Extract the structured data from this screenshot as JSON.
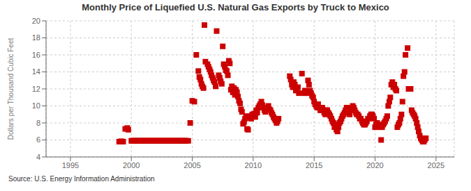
{
  "chart_data": {
    "type": "scatter",
    "title": "Monthly Price of Liquefied U.S. Natural Gas Exports by Truck to Mexico",
    "ylabel": "Dollars per Thousand Cubic Feet",
    "annotations": [
      "Source: U.S. Energy Information Administration"
    ],
    "color": "#cc0000",
    "marker": "square",
    "grid": true,
    "xlim": [
      1993.0,
      2026.5
    ],
    "xticks": [
      1995,
      2000,
      2005,
      2010,
      2015,
      2020,
      2025
    ],
    "ylim": [
      4,
      20
    ],
    "yticks": [
      4,
      6,
      8,
      10,
      12,
      14,
      16,
      18,
      20
    ],
    "x": [
      1999.0,
      1999.17,
      1999.33,
      1999.5,
      1999.67,
      1999.75,
      2000.0,
      2000.08,
      2000.17,
      2000.25,
      2000.33,
      2000.42,
      2000.5,
      2000.58,
      2000.67,
      2000.75,
      2000.83,
      2000.92,
      2001.0,
      2001.08,
      2001.17,
      2001.25,
      2001.33,
      2001.42,
      2001.5,
      2001.58,
      2001.67,
      2001.75,
      2001.83,
      2001.92,
      2002.0,
      2002.08,
      2002.17,
      2002.25,
      2002.33,
      2002.42,
      2002.5,
      2002.58,
      2002.67,
      2002.75,
      2002.83,
      2002.92,
      2003.0,
      2003.08,
      2003.17,
      2003.25,
      2003.33,
      2003.42,
      2003.5,
      2003.58,
      2003.67,
      2003.75,
      2003.83,
      2003.92,
      2004.0,
      2004.08,
      2004.17,
      2004.25,
      2004.33,
      2004.42,
      2004.5,
      2004.67,
      2004.83,
      2005.0,
      2005.17,
      2005.33,
      2005.5,
      2005.58,
      2005.67,
      2005.75,
      2005.83,
      2005.92,
      2006.0,
      2006.08,
      2006.25,
      2006.33,
      2006.42,
      2006.5,
      2006.58,
      2006.67,
      2006.75,
      2006.83,
      2006.92,
      2007.0,
      2007.17,
      2007.25,
      2007.33,
      2007.42,
      2007.5,
      2007.58,
      2007.67,
      2007.75,
      2007.83,
      2007.92,
      2008.0,
      2008.08,
      2008.17,
      2008.25,
      2008.33,
      2008.42,
      2008.5,
      2008.58,
      2008.67,
      2008.75,
      2008.83,
      2008.92,
      2009.0,
      2009.08,
      2009.17,
      2009.25,
      2009.33,
      2009.42,
      2009.5,
      2009.58,
      2009.67,
      2009.75,
      2009.83,
      2009.92,
      2010.0,
      2010.08,
      2010.17,
      2010.25,
      2010.33,
      2010.42,
      2010.5,
      2010.58,
      2010.67,
      2010.75,
      2010.83,
      2010.92,
      2011.0,
      2011.08,
      2011.17,
      2011.25,
      2011.33,
      2011.42,
      2011.5,
      2011.58,
      2011.67,
      2011.75,
      2011.83,
      2011.92,
      2012.0,
      2012.08,
      2013.0,
      2013.08,
      2013.17,
      2013.25,
      2013.33,
      2013.42,
      2013.5,
      2013.58,
      2013.67,
      2013.75,
      2014.0,
      2014.17,
      2014.25,
      2014.33,
      2014.5,
      2014.58,
      2014.67,
      2014.75,
      2014.83,
      2014.92,
      2015.0,
      2015.08,
      2015.17,
      2015.25,
      2015.33,
      2015.42,
      2015.5,
      2015.58,
      2015.67,
      2015.75,
      2015.83,
      2015.92,
      2016.0,
      2016.08,
      2016.17,
      2016.25,
      2016.33,
      2016.42,
      2016.5,
      2016.58,
      2016.67,
      2016.75,
      2016.83,
      2016.92,
      2017.0,
      2017.08,
      2017.17,
      2017.25,
      2017.33,
      2017.42,
      2017.5,
      2017.58,
      2017.67,
      2017.75,
      2017.83,
      2017.92,
      2018.0,
      2018.08,
      2018.17,
      2018.25,
      2018.33,
      2018.42,
      2018.5,
      2018.58,
      2018.67,
      2018.75,
      2018.83,
      2018.92,
      2019.0,
      2019.08,
      2019.17,
      2019.25,
      2019.33,
      2019.42,
      2019.5,
      2019.58,
      2019.67,
      2019.75,
      2019.83,
      2019.92,
      2020.0,
      2020.08,
      2020.17,
      2020.25,
      2020.33,
      2020.42,
      2020.5,
      2020.58,
      2020.67,
      2020.75,
      2020.83,
      2020.92,
      2021.0,
      2021.08,
      2021.17,
      2021.25,
      2021.33,
      2021.42,
      2021.5,
      2021.58,
      2021.67,
      2021.75,
      2021.83,
      2021.92,
      2022.0,
      2022.08,
      2022.17,
      2022.25,
      2022.33,
      2022.42,
      2022.5,
      2022.67,
      2022.75,
      2022.83,
      2022.92,
      2023.0,
      2023.08,
      2023.17,
      2023.25,
      2023.33,
      2023.42,
      2023.5,
      2023.58,
      2023.67,
      2023.75,
      2023.83,
      2023.92,
      2024.0,
      2024.08,
      2024.17
    ],
    "values": [
      5.8,
      5.85,
      5.8,
      7.3,
      7.4,
      7.2,
      5.9,
      5.9,
      5.9,
      5.9,
      5.9,
      5.9,
      5.9,
      5.9,
      5.9,
      5.9,
      5.9,
      5.9,
      5.9,
      5.9,
      5.9,
      5.9,
      5.9,
      5.9,
      5.9,
      5.9,
      5.9,
      5.9,
      5.9,
      5.9,
      5.9,
      5.9,
      5.9,
      5.9,
      5.9,
      5.9,
      5.9,
      5.9,
      5.9,
      5.9,
      5.9,
      5.9,
      5.9,
      5.9,
      5.9,
      5.9,
      5.9,
      5.9,
      5.9,
      5.9,
      5.9,
      5.9,
      5.9,
      5.9,
      5.9,
      5.9,
      5.9,
      5.9,
      5.9,
      5.9,
      5.9,
      5.9,
      8.0,
      10.6,
      10.5,
      16.0,
      14.1,
      13.4,
      13.1,
      12.6,
      12.3,
      12.1,
      19.5,
      15.2,
      14.9,
      14.6,
      14.3,
      14.0,
      13.6,
      13.3,
      13.0,
      12.8,
      12.3,
      18.8,
      13.6,
      13.3,
      12.9,
      12.6,
      17.0,
      14.9,
      14.6,
      14.2,
      14.1,
      13.6,
      15.3,
      15.0,
      11.9,
      12.3,
      11.6,
      12.1,
      11.3,
      11.9,
      11.6,
      11.1,
      10.6,
      10.3,
      9.6,
      9.3,
      7.9,
      8.1,
      8.5,
      8.8,
      7.3,
      7.2,
      8.6,
      8.8,
      8.5,
      9.0,
      8.8,
      9.1,
      8.7,
      9.5,
      9.2,
      9.8,
      10.0,
      10.2,
      10.5,
      10.1,
      9.8,
      9.5,
      9.3,
      9.6,
      9.8,
      10.0,
      9.6,
      9.5,
      9.2,
      9.0,
      8.7,
      8.5,
      8.3,
      8.0,
      8.2,
      8.5,
      13.5,
      13.1,
      12.5,
      12.2,
      12.8,
      12.5,
      11.8,
      12.0,
      12.2,
      11.5,
      13.8,
      11.5,
      11.8,
      11.5,
      13.0,
      12.5,
      11.8,
      11.5,
      11.2,
      11.0,
      10.5,
      10.2,
      10.0,
      9.8,
      10.2,
      9.8,
      9.5,
      9.5,
      9.8,
      9.5,
      9.2,
      9.0,
      9.5,
      9.5,
      9.2,
      9.0,
      8.8,
      8.5,
      8.2,
      8.0,
      7.5,
      7.8,
      7.2,
      7.0,
      7.5,
      8.0,
      8.2,
      8.5,
      8.8,
      9.0,
      9.2,
      9.5,
      9.8,
      9.5,
      9.2,
      9.0,
      9.5,
      9.8,
      10.0,
      9.8,
      9.5,
      9.2,
      9.0,
      9.0,
      8.8,
      8.5,
      8.5,
      8.2,
      8.0,
      7.8,
      7.8,
      8.0,
      8.2,
      8.5,
      8.5,
      8.8,
      9.0,
      9.0,
      8.8,
      8.5,
      7.5,
      7.8,
      8.0,
      7.8,
      7.5,
      7.8,
      6.0,
      7.5,
      7.8,
      8.0,
      8.2,
      8.5,
      8.8,
      10.0,
      10.5,
      11.0,
      12.5,
      12.8,
      12.2,
      12.5,
      12.0,
      11.8,
      7.5,
      7.8,
      8.0,
      8.5,
      9.0,
      10.5,
      13.5,
      14.0,
      16.0,
      16.8,
      12.0,
      12.0,
      12.0,
      9.5,
      9.2,
      9.0,
      8.8,
      8.5,
      8.0,
      7.5,
      7.0,
      6.5,
      6.2,
      6.0,
      5.8,
      5.8,
      6.0,
      6.2
    ]
  }
}
